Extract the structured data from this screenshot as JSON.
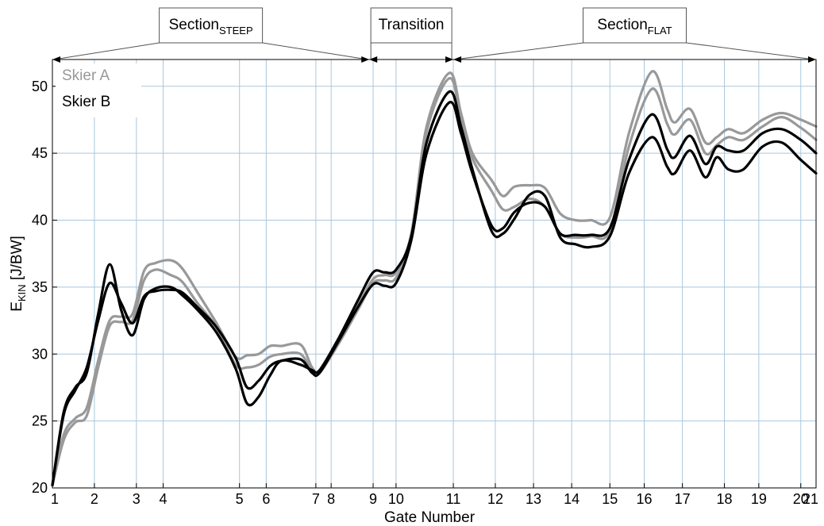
{
  "chart_data": {
    "type": "line",
    "xlabel": "Gate Number",
    "ylabel": "E",
    "ylabel_sub": "KIN",
    "ylabel_unit": " [J/BW]",
    "ylim": [
      20,
      52
    ],
    "yticks": [
      20,
      25,
      30,
      35,
      40,
      45,
      50
    ],
    "xlim": [
      1,
      21
    ],
    "gates": [
      {
        "label": "1",
        "x": 1.0
      },
      {
        "label": "2",
        "x": 2.1
      },
      {
        "label": "3",
        "x": 3.2
      },
      {
        "label": "4",
        "x": 3.9
      },
      {
        "label": "5",
        "x": 5.9
      },
      {
        "label": "6",
        "x": 6.6
      },
      {
        "label": "7",
        "x": 7.9
      },
      {
        "label": "8",
        "x": 8.3
      },
      {
        "label": "9",
        "x": 9.4
      },
      {
        "label": "10",
        "x": 10.0
      },
      {
        "label": "11",
        "x": 11.5
      },
      {
        "label": "12",
        "x": 12.6
      },
      {
        "label": "13",
        "x": 13.6
      },
      {
        "label": "14",
        "x": 14.6
      },
      {
        "label": "15",
        "x": 15.6
      },
      {
        "label": "16",
        "x": 16.5
      },
      {
        "label": "17",
        "x": 17.5
      },
      {
        "label": "18",
        "x": 18.6
      },
      {
        "label": "19",
        "x": 19.5
      },
      {
        "label": "20",
        "x": 20.6
      },
      {
        "label": "21",
        "x": 21.0
      }
    ],
    "legend": [
      {
        "name": "Skier A",
        "color": "#999999"
      },
      {
        "name": "Skier B",
        "color": "#000000"
      }
    ],
    "sections": [
      {
        "label": "Section",
        "sub": "STEEP",
        "x_start": 1.0,
        "x_end": 9.3
      },
      {
        "label": "Transition",
        "sub": "",
        "x_start": 9.3,
        "x_end": 11.5
      },
      {
        "label": "Section",
        "sub": "FLAT",
        "x_start": 11.5,
        "x_end": 21.0
      }
    ],
    "series": [
      {
        "color": "#999999",
        "points": [
          [
            1.0,
            20.2
          ],
          [
            1.3,
            24.0
          ],
          [
            1.6,
            25.2
          ],
          [
            1.9,
            26.0
          ],
          [
            2.2,
            29.5
          ],
          [
            2.5,
            32.5
          ],
          [
            2.8,
            32.8
          ],
          [
            3.1,
            33.0
          ],
          [
            3.4,
            36.2
          ],
          [
            3.7,
            36.8
          ],
          [
            4.1,
            37.0
          ],
          [
            4.4,
            36.4
          ],
          [
            4.8,
            34.6
          ],
          [
            5.3,
            32.3
          ],
          [
            5.8,
            29.8
          ],
          [
            6.1,
            29.9
          ],
          [
            6.4,
            30.0
          ],
          [
            6.7,
            30.6
          ],
          [
            7.0,
            30.6
          ],
          [
            7.5,
            30.7
          ],
          [
            7.8,
            29.0
          ],
          [
            8.0,
            28.8
          ],
          [
            8.5,
            31.0
          ],
          [
            9.0,
            33.6
          ],
          [
            9.4,
            35.6
          ],
          [
            9.7,
            35.9
          ],
          [
            10.0,
            36.1
          ],
          [
            10.4,
            39.0
          ],
          [
            10.8,
            47.0
          ],
          [
            11.4,
            51.0
          ],
          [
            11.7,
            48.0
          ],
          [
            12.0,
            45.0
          ],
          [
            12.5,
            43.0
          ],
          [
            12.8,
            41.8
          ],
          [
            13.1,
            42.5
          ],
          [
            13.5,
            42.6
          ],
          [
            13.9,
            42.4
          ],
          [
            14.3,
            40.5
          ],
          [
            14.7,
            40.0
          ],
          [
            15.1,
            40.0
          ],
          [
            15.6,
            40.2
          ],
          [
            16.1,
            46.5
          ],
          [
            16.7,
            51.1
          ],
          [
            17.1,
            48.3
          ],
          [
            17.3,
            47.3
          ],
          [
            17.7,
            48.3
          ],
          [
            18.1,
            45.8
          ],
          [
            18.4,
            46.2
          ],
          [
            18.7,
            46.8
          ],
          [
            19.1,
            46.5
          ],
          [
            19.6,
            47.5
          ],
          [
            20.1,
            48.0
          ],
          [
            20.6,
            47.5
          ],
          [
            21.0,
            47.0
          ]
        ]
      },
      {
        "color": "#999999",
        "points": [
          [
            1.0,
            20.2
          ],
          [
            1.3,
            23.6
          ],
          [
            1.6,
            24.9
          ],
          [
            1.9,
            25.4
          ],
          [
            2.2,
            29.0
          ],
          [
            2.5,
            32.1
          ],
          [
            2.8,
            32.4
          ],
          [
            3.1,
            32.5
          ],
          [
            3.4,
            35.5
          ],
          [
            3.7,
            36.3
          ],
          [
            4.1,
            35.9
          ],
          [
            4.4,
            35.4
          ],
          [
            4.8,
            33.8
          ],
          [
            5.3,
            32.0
          ],
          [
            5.8,
            29.2
          ],
          [
            6.1,
            29.0
          ],
          [
            6.4,
            29.2
          ],
          [
            6.7,
            29.8
          ],
          [
            7.0,
            30.0
          ],
          [
            7.5,
            30.0
          ],
          [
            7.8,
            28.7
          ],
          [
            8.0,
            28.6
          ],
          [
            8.5,
            30.8
          ],
          [
            9.0,
            33.3
          ],
          [
            9.4,
            35.3
          ],
          [
            9.7,
            35.5
          ],
          [
            10.0,
            35.7
          ],
          [
            10.4,
            38.7
          ],
          [
            10.8,
            46.6
          ],
          [
            11.4,
            50.6
          ],
          [
            11.7,
            47.6
          ],
          [
            12.0,
            44.6
          ],
          [
            12.5,
            42.2
          ],
          [
            12.8,
            40.8
          ],
          [
            13.1,
            41.0
          ],
          [
            13.5,
            41.6
          ],
          [
            13.9,
            41.0
          ],
          [
            14.3,
            39.0
          ],
          [
            14.7,
            38.7
          ],
          [
            15.1,
            38.8
          ],
          [
            15.6,
            39.2
          ],
          [
            16.1,
            45.5
          ],
          [
            16.7,
            49.8
          ],
          [
            17.1,
            47.2
          ],
          [
            17.3,
            46.4
          ],
          [
            17.7,
            47.5
          ],
          [
            18.1,
            45.0
          ],
          [
            18.4,
            45.6
          ],
          [
            18.7,
            46.2
          ],
          [
            19.1,
            46.0
          ],
          [
            19.6,
            47.0
          ],
          [
            20.1,
            47.7
          ],
          [
            20.6,
            46.9
          ],
          [
            21.0,
            46.0
          ]
        ]
      },
      {
        "color": "#000000",
        "points": [
          [
            1.0,
            20.2
          ],
          [
            1.3,
            25.5
          ],
          [
            1.6,
            27.3
          ],
          [
            1.9,
            29.0
          ],
          [
            2.2,
            32.5
          ],
          [
            2.5,
            35.3
          ],
          [
            2.8,
            33.8
          ],
          [
            3.1,
            32.3
          ],
          [
            3.4,
            34.3
          ],
          [
            3.7,
            34.7
          ],
          [
            4.1,
            34.8
          ],
          [
            4.4,
            34.6
          ],
          [
            4.8,
            33.5
          ],
          [
            5.3,
            32.0
          ],
          [
            5.8,
            29.7
          ],
          [
            6.1,
            27.5
          ],
          [
            6.4,
            28.0
          ],
          [
            6.7,
            29.1
          ],
          [
            7.0,
            29.5
          ],
          [
            7.5,
            29.6
          ],
          [
            7.8,
            28.6
          ],
          [
            8.0,
            28.6
          ],
          [
            8.5,
            31.0
          ],
          [
            9.0,
            33.5
          ],
          [
            9.4,
            35.2
          ],
          [
            9.7,
            35.1
          ],
          [
            10.0,
            35.3
          ],
          [
            10.4,
            38.5
          ],
          [
            10.8,
            45.0
          ],
          [
            11.4,
            48.8
          ],
          [
            11.7,
            46.5
          ],
          [
            12.0,
            43.5
          ],
          [
            12.5,
            39.6
          ],
          [
            12.8,
            39.4
          ],
          [
            13.1,
            40.6
          ],
          [
            13.5,
            41.3
          ],
          [
            13.9,
            41.0
          ],
          [
            14.3,
            39.0
          ],
          [
            14.7,
            38.9
          ],
          [
            15.1,
            38.9
          ],
          [
            15.6,
            39.4
          ],
          [
            16.1,
            44.5
          ],
          [
            16.7,
            47.9
          ],
          [
            17.1,
            45.3
          ],
          [
            17.3,
            44.7
          ],
          [
            17.7,
            46.3
          ],
          [
            18.1,
            44.2
          ],
          [
            18.4,
            45.5
          ],
          [
            18.7,
            45.2
          ],
          [
            19.1,
            45.2
          ],
          [
            19.6,
            46.5
          ],
          [
            20.1,
            46.8
          ],
          [
            20.6,
            46.0
          ],
          [
            21.0,
            45.0
          ]
        ]
      },
      {
        "color": "#000000",
        "points": [
          [
            1.0,
            20.2
          ],
          [
            1.3,
            25.7
          ],
          [
            1.6,
            27.5
          ],
          [
            1.9,
            28.6
          ],
          [
            2.2,
            33.0
          ],
          [
            2.5,
            36.7
          ],
          [
            2.8,
            33.3
          ],
          [
            3.1,
            31.4
          ],
          [
            3.4,
            34.1
          ],
          [
            3.7,
            34.9
          ],
          [
            4.1,
            35.0
          ],
          [
            4.4,
            34.4
          ],
          [
            4.8,
            33.3
          ],
          [
            5.3,
            31.6
          ],
          [
            5.8,
            28.9
          ],
          [
            6.1,
            26.3
          ],
          [
            6.4,
            26.8
          ],
          [
            6.7,
            28.4
          ],
          [
            7.0,
            29.5
          ],
          [
            7.5,
            29.2
          ],
          [
            7.8,
            28.8
          ],
          [
            8.0,
            28.8
          ],
          [
            8.5,
            31.2
          ],
          [
            9.0,
            34.0
          ],
          [
            9.4,
            36.1
          ],
          [
            9.7,
            36.1
          ],
          [
            10.0,
            36.3
          ],
          [
            10.4,
            38.8
          ],
          [
            10.8,
            45.8
          ],
          [
            11.4,
            49.6
          ],
          [
            11.7,
            47.0
          ],
          [
            12.0,
            43.8
          ],
          [
            12.5,
            39.2
          ],
          [
            12.8,
            39.0
          ],
          [
            13.1,
            40.1
          ],
          [
            13.5,
            41.9
          ],
          [
            13.9,
            41.8
          ],
          [
            14.3,
            38.7
          ],
          [
            14.7,
            38.2
          ],
          [
            15.1,
            38.0
          ],
          [
            15.6,
            38.8
          ],
          [
            16.1,
            43.5
          ],
          [
            16.7,
            46.2
          ],
          [
            17.1,
            44.0
          ],
          [
            17.3,
            43.5
          ],
          [
            17.7,
            45.2
          ],
          [
            18.1,
            43.2
          ],
          [
            18.4,
            44.7
          ],
          [
            18.7,
            43.8
          ],
          [
            19.1,
            43.8
          ],
          [
            19.6,
            45.5
          ],
          [
            20.1,
            45.8
          ],
          [
            20.6,
            44.5
          ],
          [
            21.0,
            43.5
          ]
        ]
      }
    ]
  }
}
